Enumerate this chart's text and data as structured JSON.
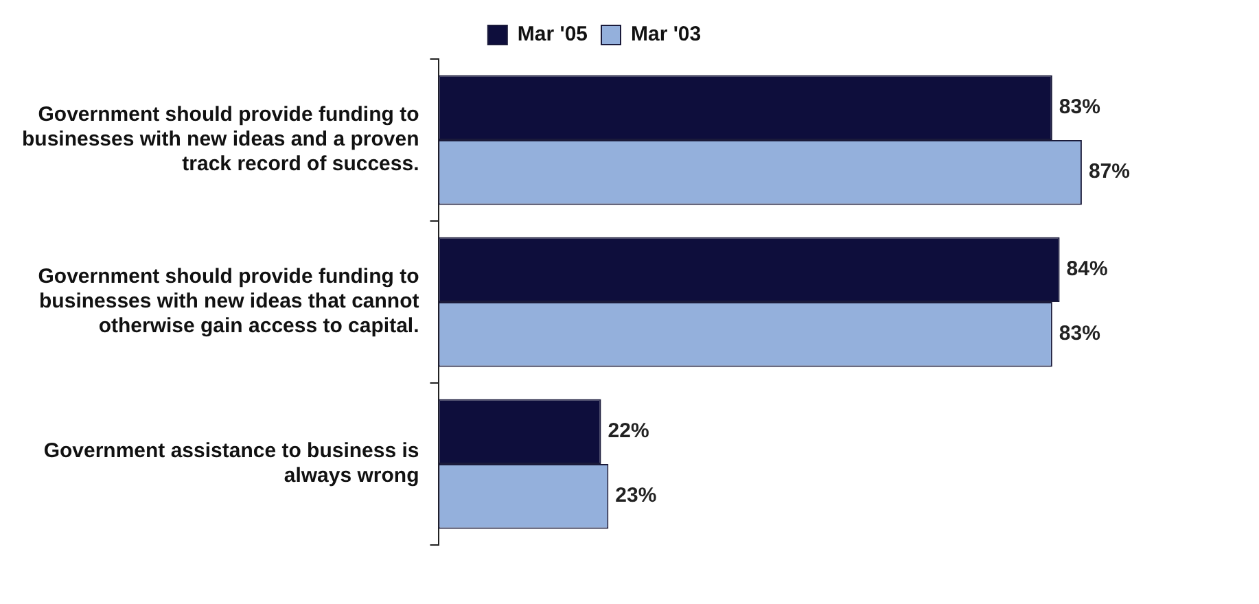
{
  "chart_data": {
    "type": "bar",
    "orientation": "horizontal",
    "categories": [
      "Government should provide funding to businesses with new ideas and a proven track record of success.",
      "Government should provide funding to businesses with new ideas that cannot otherwise gain access to capital.",
      "Government assistance to business is always wrong"
    ],
    "series": [
      {
        "name": "Mar '05",
        "color": "#0e0e3c",
        "values": [
          83,
          84,
          22
        ],
        "value_labels": [
          "83%",
          "84%",
          "22%"
        ]
      },
      {
        "name": "Mar '03",
        "color": "#94b0dc",
        "values": [
          87,
          83,
          23
        ],
        "value_labels": [
          "87%",
          "83%",
          "23%"
        ]
      }
    ],
    "legend": "top"
  }
}
